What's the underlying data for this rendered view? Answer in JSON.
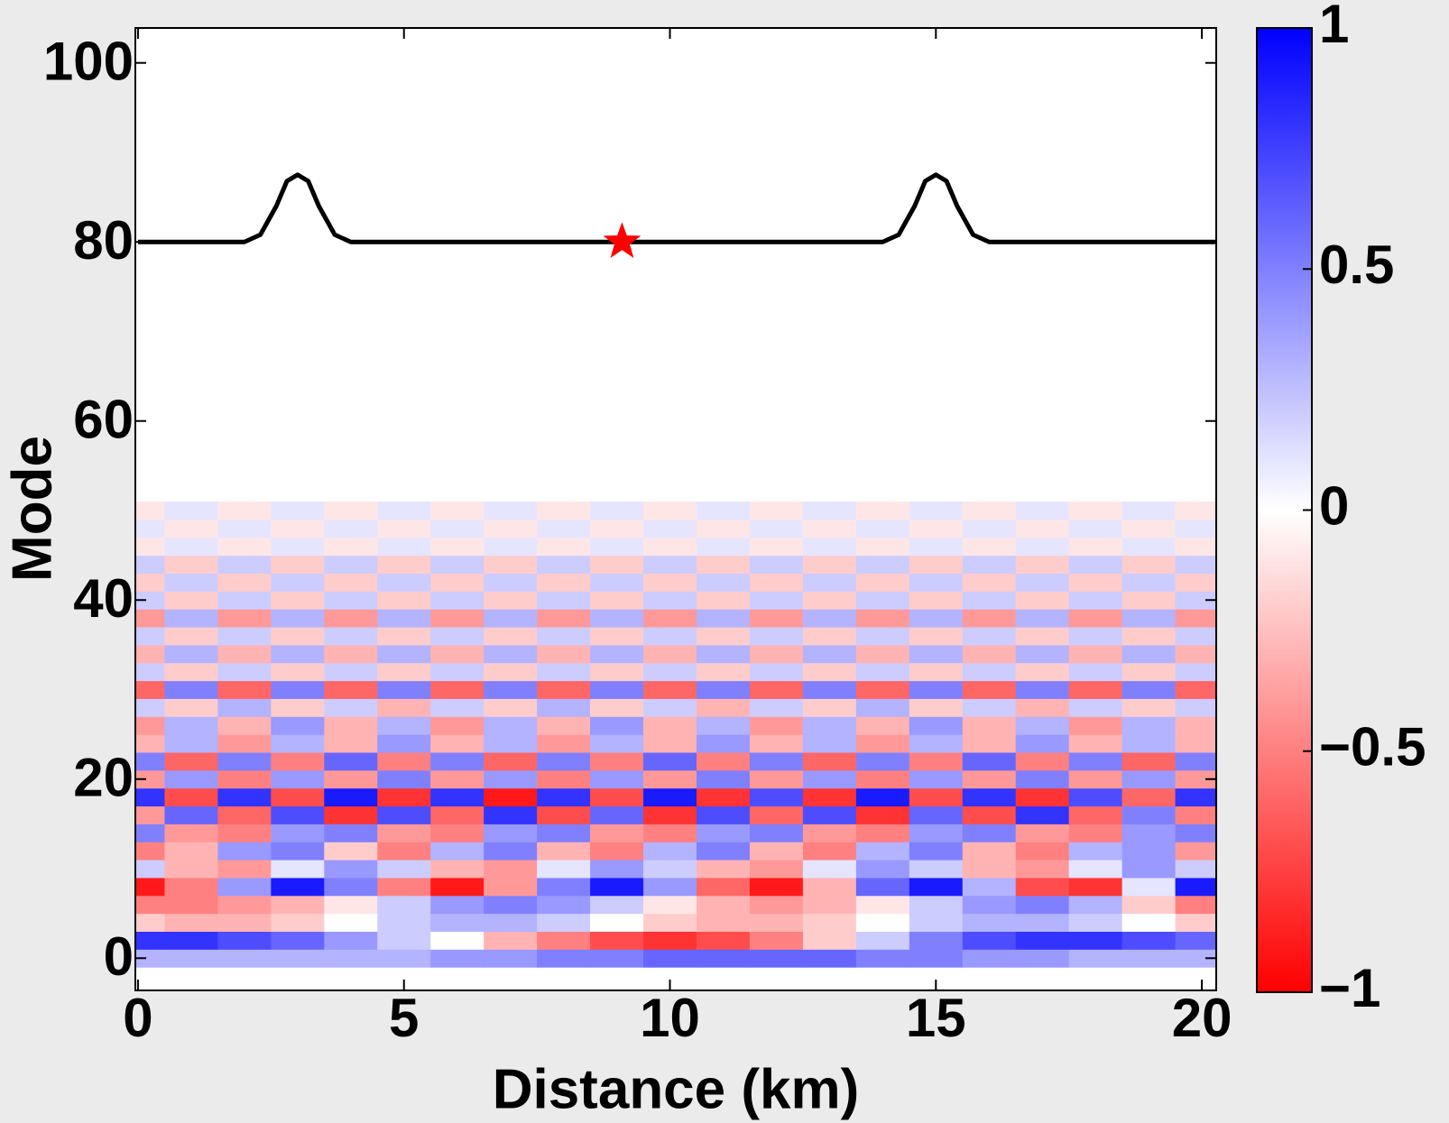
{
  "chart_data": {
    "type": "heatmap",
    "xlabel": "Distance (km)",
    "ylabel": "Mode",
    "xlim": [
      -0.05,
      20.27
    ],
    "ylim": [
      -3.6,
      103.9
    ],
    "xticks": [
      0,
      5,
      10,
      15,
      20
    ],
    "yticks": [
      0,
      20,
      40,
      60,
      80,
      100
    ],
    "clim": [
      -1,
      1
    ],
    "cticks": [
      {
        "value": -1,
        "label": "−1"
      },
      {
        "value": -0.5,
        "label": "−0.5"
      },
      0,
      0.5,
      1
    ],
    "colormap": [
      "#ff0000",
      "#ffffff",
      "#0000ff"
    ],
    "x": [
      0,
      1,
      2,
      3,
      4,
      5,
      6,
      7,
      8,
      9,
      10,
      11,
      12,
      13,
      14,
      15,
      16,
      17,
      18,
      19,
      20
    ],
    "y": [
      0,
      2,
      4,
      6,
      8,
      10,
      12,
      14,
      16,
      18,
      20,
      22,
      24,
      26,
      28,
      30,
      32,
      34,
      36,
      38,
      40,
      42,
      44,
      46,
      48,
      50
    ],
    "z": [
      [
        0.3,
        0.3,
        0.3,
        0.3,
        0.3,
        0.3,
        0.4,
        0.4,
        0.5,
        0.5,
        0.6,
        0.6,
        0.6,
        0.6,
        0.5,
        0.5,
        0.4,
        0.4,
        0.3,
        0.3,
        0.3
      ],
      [
        0.8,
        0.8,
        0.7,
        0.6,
        0.4,
        0.2,
        0,
        -0.3,
        -0.5,
        -0.7,
        -0.8,
        -0.7,
        -0.5,
        -0.2,
        0.2,
        0.5,
        0.7,
        0.8,
        0.8,
        0.7,
        0.6
      ],
      [
        -0.2,
        -0.3,
        -0.3,
        -0.2,
        0,
        0.2,
        0.3,
        0.3,
        0.2,
        0,
        -0.2,
        -0.3,
        -0.3,
        -0.2,
        0,
        0.2,
        0.3,
        0.3,
        0.2,
        0,
        -0.2
      ],
      [
        -0.5,
        -0.5,
        -0.4,
        -0.3,
        -0.1,
        0.2,
        0.4,
        0.5,
        0.4,
        0.2,
        -0.1,
        -0.3,
        -0.4,
        -0.3,
        -0.1,
        0.2,
        0.4,
        0.5,
        0.3,
        -0.2,
        -0.5
      ],
      [
        -0.9,
        -0.5,
        0.4,
        0.9,
        0.5,
        -0.5,
        -0.9,
        -0.4,
        0.5,
        0.9,
        0.4,
        -0.6,
        -0.9,
        -0.3,
        0.6,
        0.9,
        0.3,
        -0.7,
        -0.8,
        0.1,
        0.9
      ],
      [
        0.2,
        -0.3,
        -0.4,
        0.1,
        0.4,
        0.2,
        -0.3,
        -0.4,
        0.1,
        0.4,
        0.2,
        -0.3,
        -0.4,
        0.1,
        0.4,
        0.2,
        -0.3,
        -0.4,
        0.1,
        0.4,
        0.2
      ],
      [
        -0.5,
        -0.3,
        0.4,
        0.5,
        -0.2,
        -0.5,
        0.3,
        0.5,
        -0.3,
        -0.5,
        0.3,
        0.5,
        -0.3,
        -0.5,
        0.3,
        0.5,
        -0.3,
        -0.5,
        0.3,
        0.4,
        -0.4
      ],
      [
        0.5,
        -0.4,
        -0.5,
        0.4,
        0.5,
        -0.4,
        -0.5,
        0.4,
        0.5,
        -0.4,
        -0.5,
        0.4,
        0.5,
        -0.4,
        -0.5,
        0.4,
        0.5,
        -0.4,
        -0.5,
        0.4,
        0.5
      ],
      [
        -0.4,
        0.6,
        -0.6,
        0.7,
        -0.8,
        0.7,
        -0.6,
        0.8,
        -0.7,
        0.6,
        -0.8,
        0.7,
        -0.6,
        0.7,
        -0.8,
        0.6,
        -0.7,
        0.8,
        -0.6,
        0.5,
        -0.5
      ],
      [
        0.8,
        -0.7,
        0.8,
        -0.7,
        0.9,
        -0.8,
        0.8,
        -0.9,
        0.8,
        -0.7,
        0.9,
        -0.8,
        0.7,
        -0.8,
        0.9,
        -0.7,
        0.8,
        -0.8,
        0.7,
        -0.6,
        0.8
      ],
      [
        -0.4,
        0.4,
        -0.5,
        0.4,
        -0.4,
        0.5,
        -0.4,
        0.4,
        -0.5,
        0.4,
        -0.4,
        0.5,
        -0.4,
        0.4,
        -0.5,
        0.4,
        -0.4,
        0.5,
        -0.4,
        0.4,
        -0.4
      ],
      [
        0.5,
        -0.6,
        0.5,
        -0.5,
        0.6,
        -0.5,
        0.5,
        -0.6,
        0.5,
        -0.5,
        0.6,
        -0.5,
        0.5,
        -0.6,
        0.5,
        -0.5,
        0.6,
        -0.5,
        0.5,
        -0.6,
        0.5
      ],
      [
        -0.3,
        0.3,
        -0.4,
        0.3,
        -0.3,
        0.4,
        -0.3,
        0.3,
        -0.4,
        0.3,
        -0.3,
        0.4,
        -0.3,
        0.3,
        -0.4,
        0.3,
        -0.3,
        0.4,
        -0.3,
        0.3,
        -0.3
      ],
      [
        -0.4,
        0.3,
        -0.3,
        0.4,
        -0.3,
        0.3,
        -0.4,
        0.3,
        -0.3,
        0.4,
        -0.3,
        0.3,
        -0.4,
        0.3,
        -0.3,
        0.4,
        -0.3,
        0.3,
        -0.4,
        0.3,
        -0.3
      ],
      [
        0.2,
        -0.2,
        0.3,
        -0.2,
        0.2,
        -0.3,
        0.2,
        -0.2,
        0.3,
        -0.2,
        0.2,
        -0.3,
        0.2,
        -0.2,
        0.3,
        -0.2,
        0.2,
        -0.3,
        0.2,
        -0.2,
        0.2
      ],
      [
        -0.6,
        0.5,
        -0.6,
        0.5,
        -0.6,
        0.5,
        -0.6,
        0.5,
        -0.6,
        0.5,
        -0.6,
        0.5,
        -0.6,
        0.5,
        -0.6,
        0.5,
        -0.6,
        0.5,
        -0.6,
        0.5,
        -0.6
      ],
      [
        0.2,
        -0.2,
        0.2,
        -0.2,
        0.2,
        -0.2,
        0.2,
        -0.2,
        0.2,
        -0.2,
        0.2,
        -0.2,
        0.2,
        -0.2,
        0.2,
        -0.2,
        0.2,
        -0.2,
        0.2,
        -0.2,
        0.2
      ],
      [
        -0.3,
        0.3,
        -0.3,
        0.3,
        -0.3,
        0.3,
        -0.3,
        0.3,
        -0.3,
        0.3,
        -0.3,
        0.3,
        -0.3,
        0.3,
        -0.3,
        0.3,
        -0.3,
        0.3,
        -0.3,
        0.3,
        -0.3
      ],
      [
        0.2,
        -0.2,
        0.2,
        -0.2,
        0.2,
        -0.2,
        0.2,
        -0.2,
        0.2,
        -0.2,
        0.2,
        -0.2,
        0.2,
        -0.2,
        0.2,
        -0.2,
        0.2,
        -0.2,
        0.2,
        -0.2,
        0.2
      ],
      [
        -0.4,
        0.3,
        -0.4,
        0.3,
        -0.4,
        0.3,
        -0.4,
        0.3,
        -0.4,
        0.3,
        -0.4,
        0.3,
        -0.4,
        0.3,
        -0.4,
        0.3,
        -0.4,
        0.3,
        -0.4,
        0.3,
        -0.4
      ],
      [
        0.2,
        -0.2,
        0.2,
        -0.2,
        0.2,
        -0.2,
        0.2,
        -0.2,
        0.2,
        -0.2,
        0.2,
        -0.2,
        0.2,
        -0.2,
        0.2,
        -0.2,
        0.2,
        -0.2,
        0.2,
        -0.2,
        0.2
      ],
      [
        -0.2,
        0.2,
        -0.2,
        0.2,
        -0.2,
        0.2,
        -0.2,
        0.2,
        -0.2,
        0.2,
        -0.2,
        0.2,
        -0.2,
        0.2,
        -0.2,
        0.2,
        -0.2,
        0.2,
        -0.2,
        0.2,
        -0.2
      ],
      [
        0.2,
        -0.2,
        0.2,
        -0.2,
        0.2,
        -0.2,
        0.2,
        -0.2,
        0.2,
        -0.2,
        0.2,
        -0.2,
        0.2,
        -0.2,
        0.2,
        -0.2,
        0.2,
        -0.2,
        0.2,
        -0.2,
        0.2
      ],
      [
        -0.1,
        0.1,
        -0.1,
        0.1,
        -0.1,
        0.1,
        -0.1,
        0.1,
        -0.1,
        0.1,
        -0.1,
        0.1,
        -0.1,
        0.1,
        -0.1,
        0.1,
        -0.1,
        0.1,
        -0.1,
        0.1,
        -0.1
      ],
      [
        0.1,
        -0.1,
        0.1,
        -0.1,
        0.1,
        -0.1,
        0.1,
        -0.1,
        0.1,
        -0.1,
        0.1,
        -0.1,
        0.1,
        -0.1,
        0.1,
        -0.1,
        0.1,
        -0.1,
        0.1,
        -0.1,
        0.1
      ],
      [
        -0.1,
        0.1,
        -0.1,
        0.1,
        -0.1,
        0.1,
        -0.1,
        0.1,
        -0.1,
        0.1,
        -0.1,
        0.1,
        -0.1,
        0.1,
        -0.1,
        0.1,
        -0.1,
        0.1,
        -0.1,
        0.1,
        -0.1
      ]
    ],
    "line": {
      "color": "#000000",
      "x": [
        0,
        2,
        2.3,
        2.6,
        2.8,
        3,
        3.2,
        3.4,
        3.7,
        4,
        14,
        14.3,
        14.6,
        14.8,
        15,
        15.2,
        15.4,
        15.7,
        16,
        20.27
      ],
      "y": [
        80,
        80,
        80.8,
        84,
        86.8,
        87.5,
        86.8,
        84,
        80.8,
        80,
        80,
        80.8,
        84,
        86.8,
        87.5,
        86.8,
        84,
        80.8,
        80,
        80
      ]
    },
    "marker": {
      "x": 9.1,
      "y": 80,
      "color": "#ff0000"
    }
  }
}
